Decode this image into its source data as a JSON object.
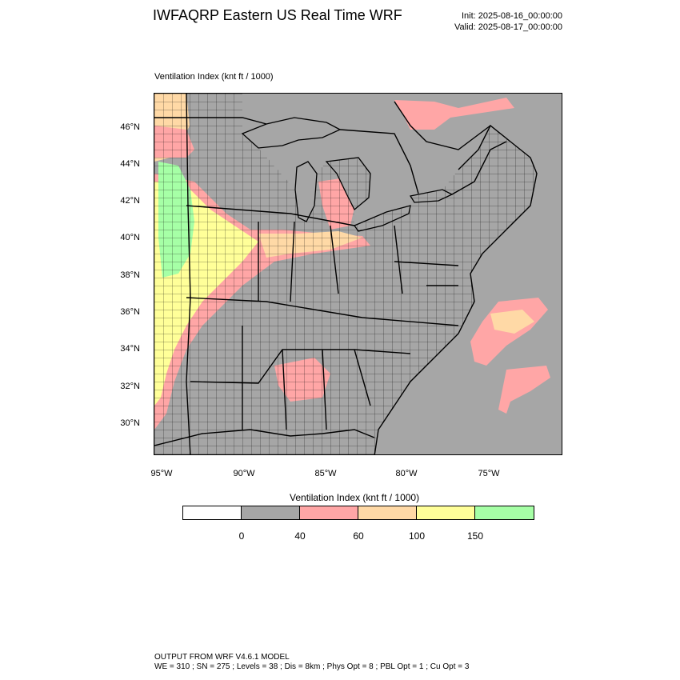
{
  "header": {
    "title": "IWFAQRP Eastern US Real Time WRF",
    "init": "Init: 2025-08-16_00:00:00",
    "valid": "Valid: 2025-08-17_00:00:00"
  },
  "field_label": "Ventilation Index   (knt ft / 1000)",
  "lat_labels": [
    "46°N",
    "44°N",
    "42°N",
    "40°N",
    "38°N",
    "36°N",
    "34°N",
    "32°N",
    "30°N"
  ],
  "lon_labels": [
    "95°W",
    "90°W",
    "85°W",
    "80°W",
    "75°W"
  ],
  "colorbar": {
    "title": "Ventilation Index  (knt ft / 1000)",
    "colors": [
      "#ffffff",
      "#a6a6a6",
      "#ffa6a6",
      "#ffd9a6",
      "#ffff99",
      "#a6ffa6"
    ],
    "labels": [
      "0",
      "40",
      "60",
      "100",
      "150"
    ]
  },
  "footer": {
    "line1": "OUTPUT FROM WRF V4.6.1 MODEL",
    "line2": "WE = 310 ; SN = 275 ; Levels = 38 ; Dis = 8km ; Phys Opt = 8 ; PBL Opt = 1 ; Cu Opt = 3"
  }
}
